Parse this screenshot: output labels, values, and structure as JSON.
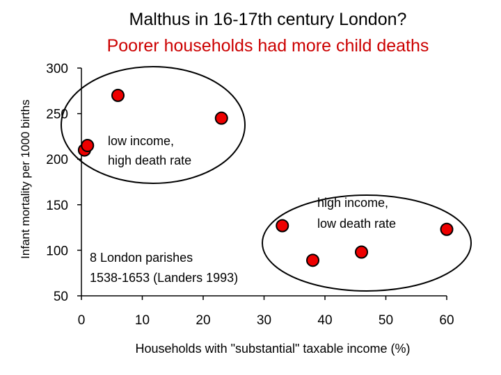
{
  "chart_data": {
    "type": "scatter",
    "title": "Malthus in 16-17th century London?",
    "subtitle": "Poorer households had more child deaths",
    "xlabel": "Households with \"substantial\" taxable income (%)",
    "ylabel": "Infant mortality per 1000 births",
    "xlim": [
      0,
      60
    ],
    "ylim": [
      50,
      300
    ],
    "xticks": [
      "0",
      "10",
      "20",
      "30",
      "40",
      "50",
      "60"
    ],
    "yticks": [
      "50",
      "100",
      "150",
      "200",
      "250",
      "300"
    ],
    "grid": false,
    "point_color": "#ee0000",
    "point_edge_color": "#000000",
    "x": [
      0.5,
      1,
      6,
      23,
      33,
      38,
      46,
      60
    ],
    "y": [
      210,
      215,
      270,
      245,
      127,
      89,
      98,
      123
    ],
    "annotations": {
      "low_income": [
        "low income,",
        "high death rate"
      ],
      "high_income": [
        "high income,",
        "low death rate"
      ],
      "source": [
        "8 London parishes",
        "1538-1653 (Landers 1993)"
      ]
    }
  }
}
